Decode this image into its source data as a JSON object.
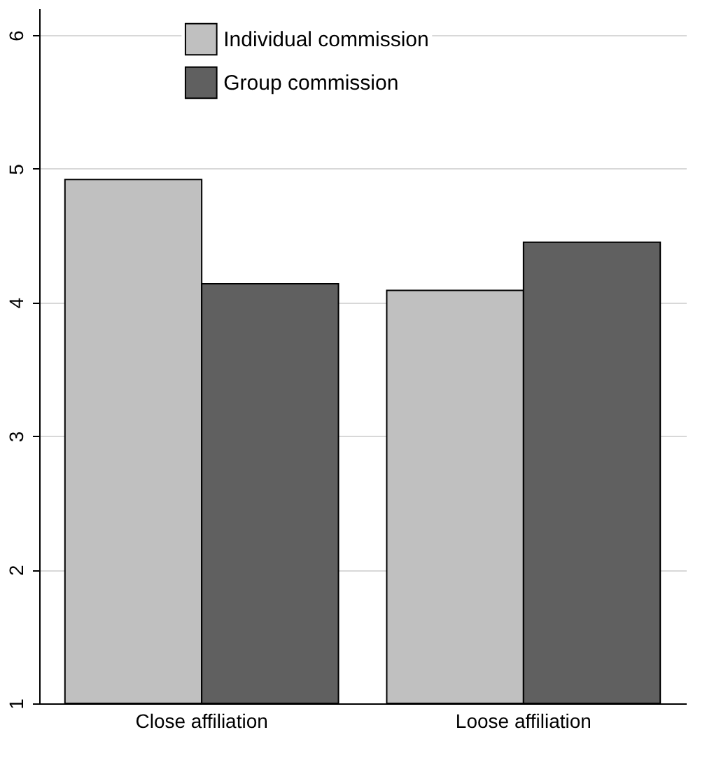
{
  "chart_data": {
    "type": "bar",
    "categories": [
      "Close affiliation",
      "Loose affiliation"
    ],
    "series": [
      {
        "name": "Individual commission",
        "color": "#c0c0c0",
        "values": [
          4.92,
          4.09
        ]
      },
      {
        "name": "Group commission",
        "color": "#606060",
        "values": [
          4.14,
          4.45
        ]
      }
    ],
    "ylim": [
      1,
      6.2
    ],
    "yticks": [
      1,
      2,
      3,
      4,
      5,
      6
    ],
    "grid": "y",
    "legend": "top"
  }
}
